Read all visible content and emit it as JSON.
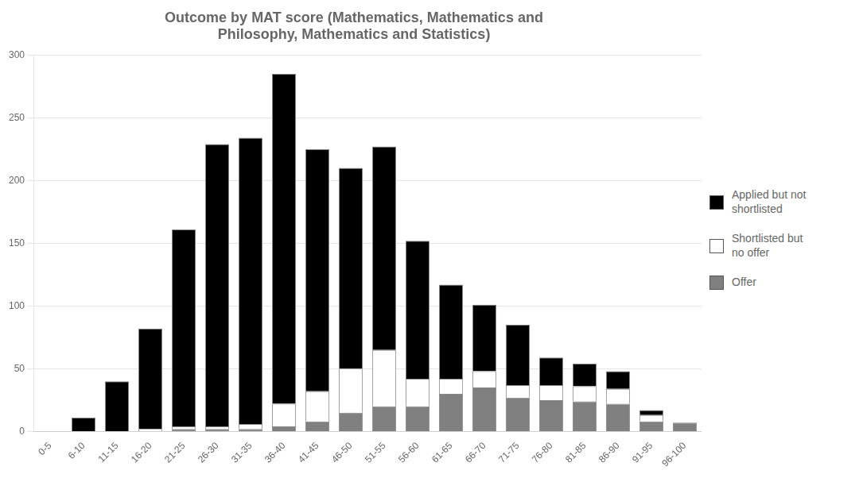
{
  "chart_data": {
    "type": "bar",
    "title": "Outcome by MAT score (Mathematics, Mathematics and\nPhilosophy, Mathematics and Statistics)",
    "categories": [
      "0-5",
      "6-10",
      "11-15",
      "16-20",
      "21-25",
      "26-30",
      "31-35",
      "36-40",
      "41-45",
      "46-50",
      "51-55",
      "56-60",
      "61-65",
      "66-70",
      "71-75",
      "76-80",
      "81-85",
      "86-90",
      "91-95",
      "96-100"
    ],
    "series": [
      {
        "name": "Offer",
        "color": "#808080",
        "values": [
          0,
          0,
          0,
          0,
          2,
          2,
          2,
          4,
          8,
          15,
          20,
          20,
          30,
          35,
          27,
          25,
          24,
          22,
          8,
          7
        ]
      },
      {
        "name": "Shortlisted but\nno offer",
        "color": "#ffffff",
        "values": [
          0,
          0,
          0,
          2,
          2,
          2,
          4,
          18,
          24,
          35,
          45,
          22,
          12,
          13,
          10,
          12,
          12,
          12,
          5,
          0
        ]
      },
      {
        "name": "Applied but not\nshortlisted",
        "color": "#000000",
        "values": [
          0,
          11,
          40,
          80,
          157,
          225,
          228,
          263,
          193,
          160,
          162,
          110,
          75,
          53,
          48,
          22,
          18,
          14,
          4,
          0
        ]
      }
    ],
    "stacked": true,
    "ylim": [
      0,
      300
    ],
    "yticks": [
      0,
      50,
      100,
      150,
      200,
      250,
      300
    ],
    "grid": true,
    "legend": "right"
  }
}
